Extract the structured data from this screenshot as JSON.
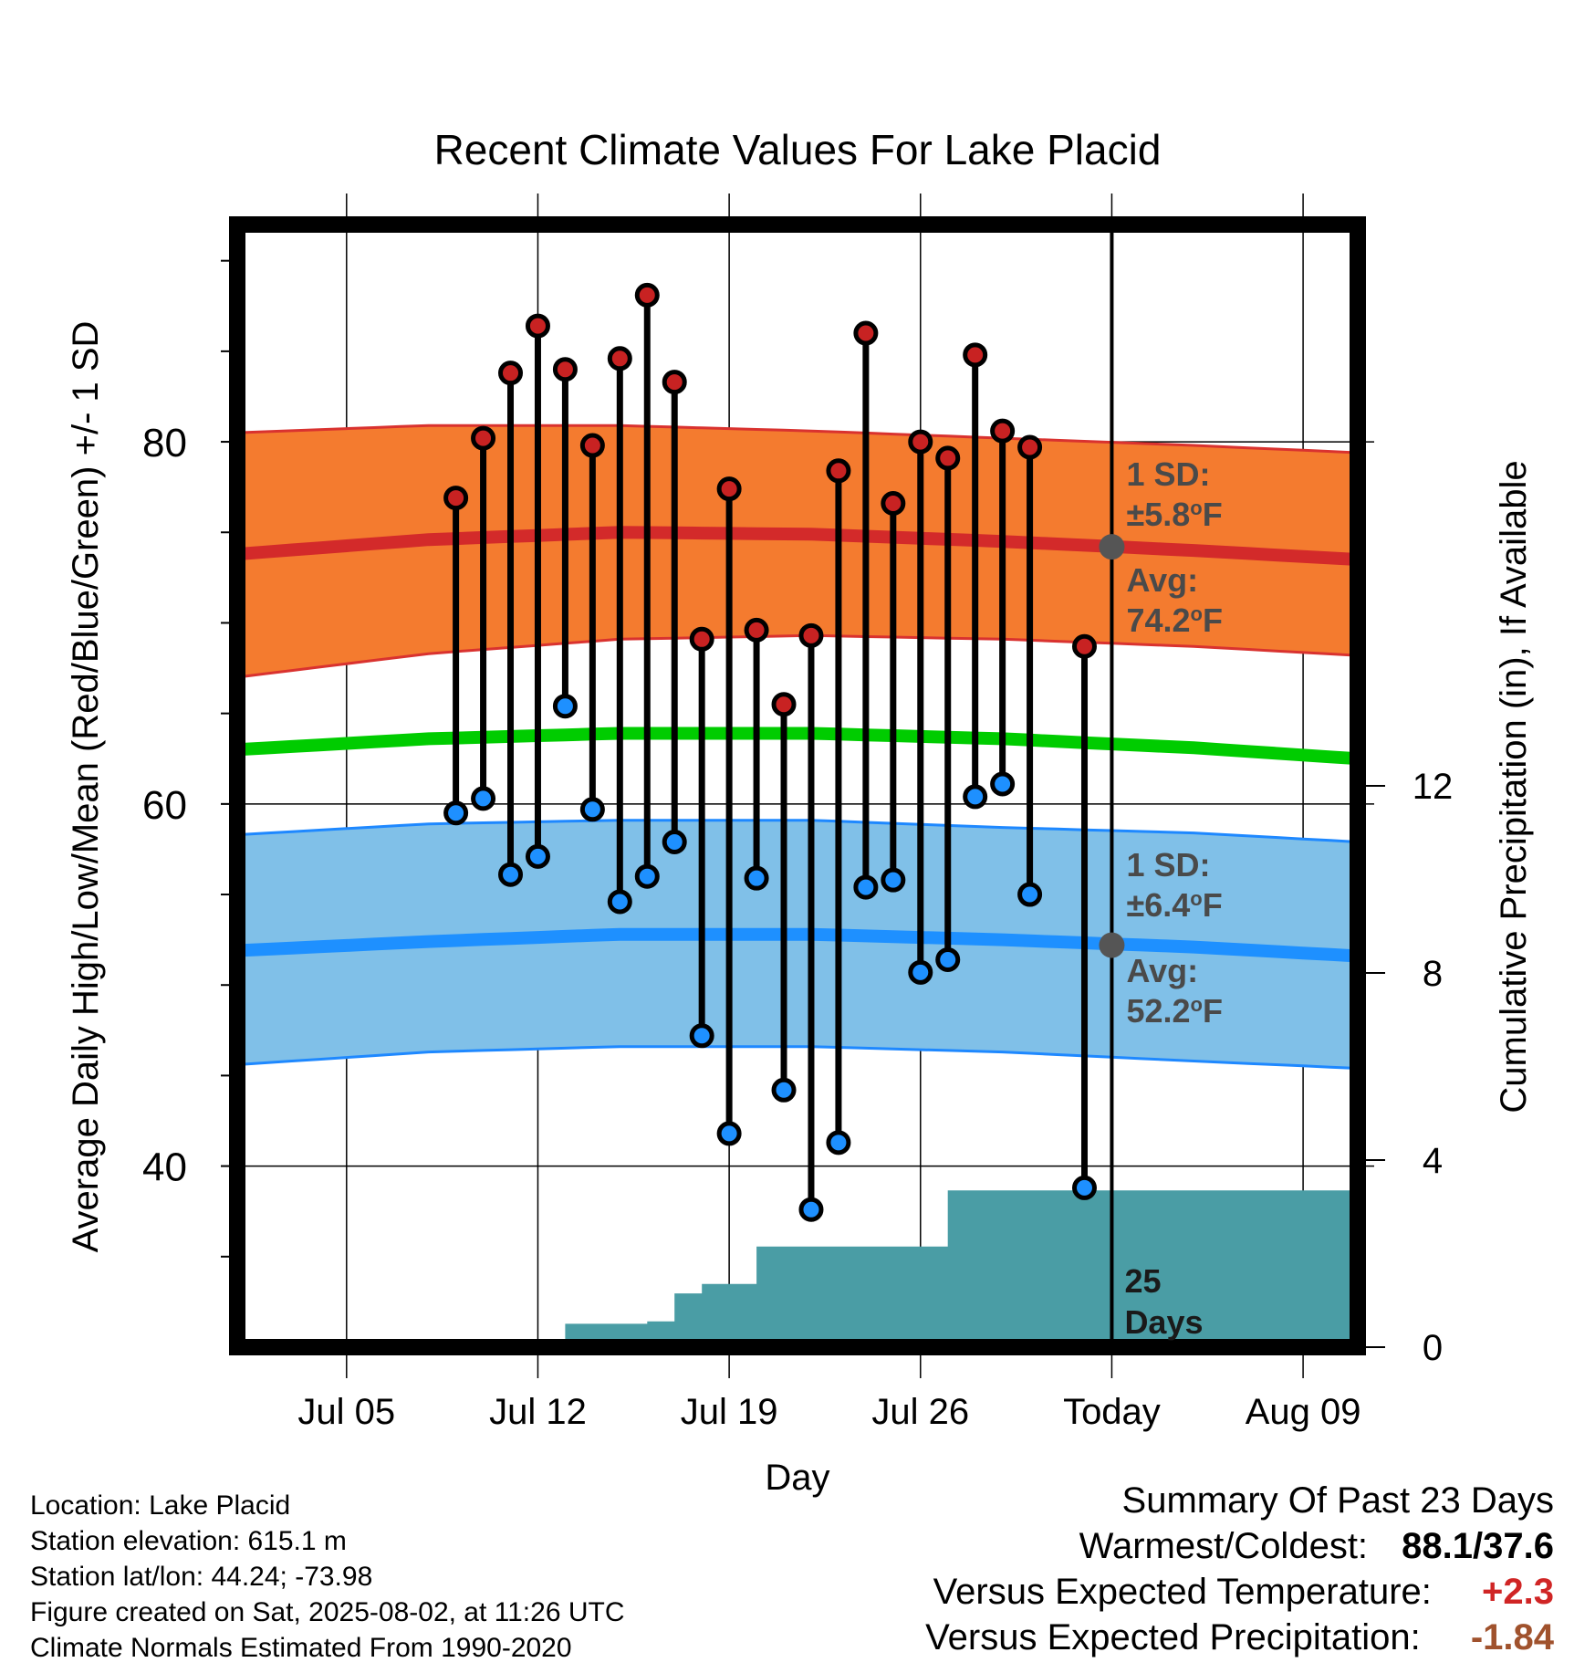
{
  "colors": {
    "high_band": "#F47B2F",
    "high_mean": "#D32A2A",
    "low_band": "#80C0E8",
    "low_mean": "#1E90FF",
    "mean_line": "#00CC00",
    "precip": "#4A9DA5",
    "dot_high": "#C82222",
    "dot_low": "#1E90FF",
    "marker_gray": "#555555",
    "annotation_gray": "#4A4A4A",
    "positive": "#D02525",
    "precip_diff": "#A0522D"
  },
  "chart_data": {
    "type": "line",
    "title": "Recent Climate Values For Lake Placid",
    "xlabel": "Day",
    "ylabel": "Average Daily High/Low/Mean (Red/Blue/Green) +/- 1 SD",
    "y2label": "Cumulative Precipitation (in), If Available",
    "x_tick_labels": [
      "Jul 05",
      "Jul 12",
      "Jul 19",
      "Jul 26",
      "Today",
      "Aug 09"
    ],
    "x_tick_dates": [
      "2025-07-05",
      "2025-07-12",
      "2025-07-19",
      "2025-07-26",
      "2025-08-02",
      "2025-08-09"
    ],
    "xlim": [
      "2025-07-01",
      "2025-08-11"
    ],
    "ylim": [
      30,
      92
    ],
    "y_ticks": [
      40,
      60,
      80
    ],
    "y2lim": [
      0,
      24
    ],
    "y2_ticks": [
      0,
      4,
      8,
      12
    ],
    "grid": true,
    "normals": {
      "dates": [
        "2025-07-01",
        "2025-07-08",
        "2025-07-15",
        "2025-07-22",
        "2025-07-29",
        "2025-08-05",
        "2025-08-11"
      ],
      "high_mean": [
        73.8,
        74.6,
        75.0,
        74.9,
        74.5,
        74.0,
        73.5
      ],
      "high_upper": [
        80.5,
        80.9,
        80.9,
        80.6,
        80.2,
        79.8,
        79.4
      ],
      "high_lower": [
        67.0,
        68.3,
        69.1,
        69.3,
        69.1,
        68.7,
        68.2
      ],
      "mean": [
        63.0,
        63.6,
        63.9,
        63.9,
        63.6,
        63.1,
        62.5
      ],
      "low_mean": [
        51.9,
        52.4,
        52.8,
        52.8,
        52.5,
        52.1,
        51.6
      ],
      "low_upper": [
        58.3,
        58.9,
        59.1,
        59.1,
        58.7,
        58.4,
        57.9
      ],
      "low_lower": [
        45.6,
        46.3,
        46.6,
        46.6,
        46.3,
        45.8,
        45.4
      ]
    },
    "daily": {
      "dates": [
        "2025-07-09",
        "2025-07-10",
        "2025-07-11",
        "2025-07-12",
        "2025-07-13",
        "2025-07-14",
        "2025-07-15",
        "2025-07-16",
        "2025-07-17",
        "2025-07-18",
        "2025-07-19",
        "2025-07-20",
        "2025-07-21",
        "2025-07-22",
        "2025-07-23",
        "2025-07-24",
        "2025-07-25",
        "2025-07-26",
        "2025-07-27",
        "2025-07-28",
        "2025-07-29",
        "2025-07-30",
        "2025-08-01"
      ],
      "high": [
        76.9,
        80.2,
        83.8,
        86.4,
        84.0,
        79.8,
        84.6,
        88.1,
        83.3,
        69.1,
        77.4,
        69.6,
        65.5,
        69.3,
        78.4,
        86.0,
        76.6,
        80.0,
        79.1,
        84.8,
        80.6,
        79.7,
        68.7
      ],
      "low": [
        59.5,
        60.3,
        56.1,
        57.1,
        65.4,
        59.7,
        54.6,
        56.0,
        57.9,
        47.2,
        41.8,
        55.9,
        44.2,
        37.6,
        41.3,
        55.4,
        55.8,
        50.7,
        51.4,
        60.4,
        61.1,
        55.0,
        38.8
      ]
    },
    "precip": {
      "dates": [
        "2025-07-01",
        "2025-07-12",
        "2025-07-13",
        "2025-07-16",
        "2025-07-17",
        "2025-07-18",
        "2025-07-19",
        "2025-07-20",
        "2025-07-26",
        "2025-07-27",
        "2025-07-30",
        "2025-08-11"
      ],
      "cumulative": [
        0.0,
        0.0,
        0.5,
        0.55,
        1.15,
        1.35,
        1.35,
        2.15,
        2.15,
        3.35,
        3.35,
        3.45
      ]
    },
    "markers": {
      "today_high_avg": 74.2,
      "today_low_avg": 52.2
    },
    "annotations": {
      "high_sd": "1 SD:",
      "high_sd_value": "±5.8",
      "high_avg": "Avg:",
      "high_avg_value": "74.2",
      "low_sd": "1 SD:",
      "low_sd_value": "±6.4",
      "low_avg": "Avg:",
      "low_avg_value": "52.2",
      "unit_deg": "o",
      "unit_f": "F",
      "precip_days_1": "25",
      "precip_days_2": "Days"
    }
  },
  "meta": {
    "location": "Location: Lake Placid",
    "elevation": "Station elevation: 615.1 m",
    "latlon": "Station lat/lon: 44.24; -73.98",
    "created": "Figure created on Sat, 2025-08-02, at 11:26 UTC",
    "normals": "Climate Normals Estimated From 1990-2020"
  },
  "summary": {
    "title": "Summary Of Past 23 Days",
    "warmest_label": "Warmest/Coldest:",
    "warmest_value": "88.1/37.6",
    "temp_label": "Versus Expected Temperature:",
    "temp_value": "+2.3",
    "precip_label": "Versus Expected Precipitation:",
    "precip_value": "-1.84"
  }
}
